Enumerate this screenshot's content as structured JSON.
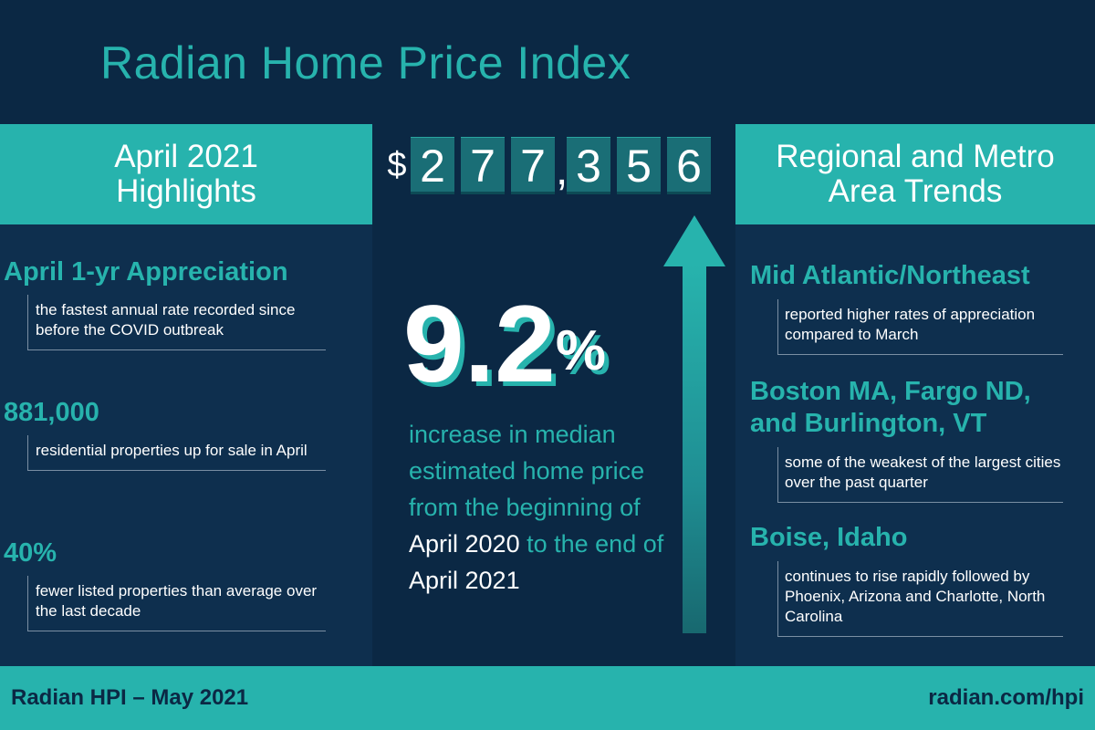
{
  "title": "Radian Home Price Index",
  "left": {
    "header": [
      "April 2021",
      "Highlights"
    ],
    "items": [
      {
        "heading": "April 1-yr Appreciation",
        "desc": "the fastest annual rate recorded since before the COVID outbreak"
      },
      {
        "heading": "881,000",
        "desc": "residential properties up for sale in April"
      },
      {
        "heading": "40%",
        "desc": "fewer listed properties than average over the last decade"
      }
    ]
  },
  "center": {
    "price": {
      "symbol": "$",
      "digits": [
        "2",
        "7",
        "7",
        "3",
        "5",
        "6"
      ],
      "separator": ","
    },
    "percent": "9.2",
    "percent_sign": "%",
    "desc": {
      "p1": "increase in median estimated home price from  the beginning of",
      "p2": "April 2020",
      "p3": "to the end of",
      "p4": "April 2021"
    }
  },
  "right": {
    "header": [
      "Regional and Metro",
      "Area Trends"
    ],
    "items": [
      {
        "heading_lines": [
          "Mid Atlantic/Northeast"
        ],
        "desc": "reported higher rates of appreciation compared to March"
      },
      {
        "heading_lines": [
          "Boston MA, Fargo ND,",
          "and Burlington, VT"
        ],
        "desc": "some of the weakest of the largest cities over the past quarter"
      },
      {
        "heading_lines": [
          "Boise, Idaho"
        ],
        "desc": "continues to rise rapidly followed by Phoenix, Arizona and Charlotte, North Carolina"
      }
    ]
  },
  "footer": {
    "left": "Radian HPI – May 2021",
    "right": "radian.com/hpi"
  },
  "colors": {
    "background": "#0b2844",
    "panel": "#0e2f4e",
    "accent": "#27b3ad",
    "text": "#ffffff"
  },
  "icons": {
    "arrow": "up-arrow-icon"
  }
}
